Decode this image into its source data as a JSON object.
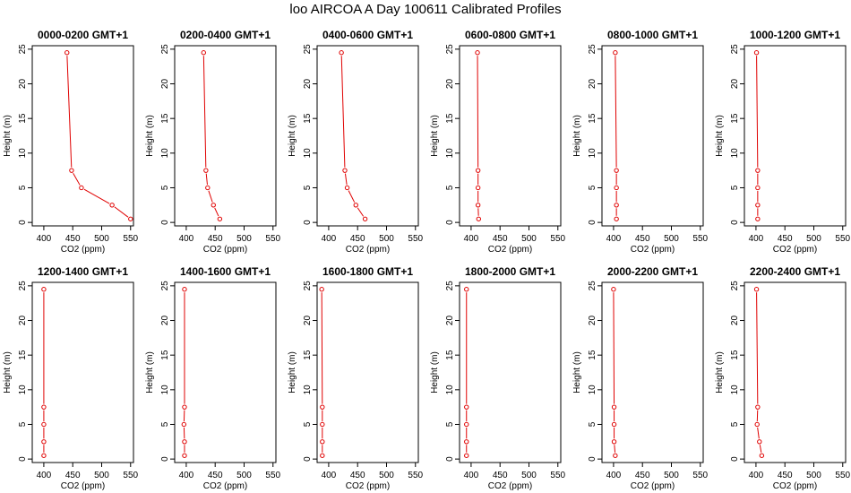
{
  "figure": {
    "title": "loo AIRCOA A  Day 100611  Calibrated Profiles"
  },
  "colors": {
    "line": "#e00000",
    "axis": "#000000"
  },
  "chart_data": [
    {
      "type": "line",
      "title": "0000-0200 GMT+1",
      "xlabel": "CO2 (ppm)",
      "ylabel": "Height (m)",
      "xlim": [
        380,
        555
      ],
      "ylim": [
        -0.5,
        25.5
      ],
      "xticks": [
        400,
        450,
        500,
        550
      ],
      "yticks": [
        0,
        5,
        10,
        15,
        20,
        25
      ],
      "grid": false,
      "series": [
        {
          "x": [
            550,
            518,
            465,
            448,
            440
          ],
          "y": [
            0.5,
            2.5,
            5,
            7.5,
            24.5
          ]
        }
      ]
    },
    {
      "type": "line",
      "title": "0200-0400 GMT+1",
      "xlabel": "CO2 (ppm)",
      "ylabel": "Height (m)",
      "xlim": [
        380,
        555
      ],
      "ylim": [
        -0.5,
        25.5
      ],
      "xticks": [
        400,
        450,
        500,
        550
      ],
      "yticks": [
        0,
        5,
        10,
        15,
        20,
        25
      ],
      "grid": false,
      "series": [
        {
          "x": [
            458,
            447,
            437,
            434,
            430
          ],
          "y": [
            0.5,
            2.5,
            5,
            7.5,
            24.5
          ]
        }
      ]
    },
    {
      "type": "line",
      "title": "0400-0600 GMT+1",
      "xlabel": "CO2 (ppm)",
      "ylabel": "Height (m)",
      "xlim": [
        380,
        555
      ],
      "ylim": [
        -0.5,
        25.5
      ],
      "xticks": [
        400,
        450,
        500,
        550
      ],
      "yticks": [
        0,
        5,
        10,
        15,
        20,
        25
      ],
      "grid": false,
      "series": [
        {
          "x": [
            463,
            447,
            432,
            428,
            422
          ],
          "y": [
            0.5,
            2.5,
            5,
            7.5,
            24.5
          ]
        }
      ]
    },
    {
      "type": "line",
      "title": "0600-0800 GMT+1",
      "xlabel": "CO2 (ppm)",
      "ylabel": "Height (m)",
      "xlim": [
        380,
        555
      ],
      "ylim": [
        -0.5,
        25.5
      ],
      "xticks": [
        400,
        450,
        500,
        550
      ],
      "yticks": [
        0,
        5,
        10,
        15,
        20,
        25
      ],
      "grid": false,
      "series": [
        {
          "x": [
            413,
            412,
            412,
            412,
            411
          ],
          "y": [
            0.5,
            2.5,
            5,
            7.5,
            24.5
          ]
        }
      ]
    },
    {
      "type": "line",
      "title": "0800-1000 GMT+1",
      "xlabel": "CO2 (ppm)",
      "ylabel": "Height (m)",
      "xlim": [
        380,
        555
      ],
      "ylim": [
        -0.5,
        25.5
      ],
      "xticks": [
        400,
        450,
        500,
        550
      ],
      "yticks": [
        0,
        5,
        10,
        15,
        20,
        25
      ],
      "grid": false,
      "series": [
        {
          "x": [
            405,
            405,
            405,
            405,
            403
          ],
          "y": [
            0.5,
            2.5,
            5,
            7.5,
            24.5
          ]
        }
      ]
    },
    {
      "type": "line",
      "title": "1000-1200 GMT+1",
      "xlabel": "CO2 (ppm)",
      "ylabel": "Height (m)",
      "xlim": [
        380,
        555
      ],
      "ylim": [
        -0.5,
        25.5
      ],
      "xticks": [
        400,
        450,
        500,
        550
      ],
      "yticks": [
        0,
        5,
        10,
        15,
        20,
        25
      ],
      "grid": false,
      "series": [
        {
          "x": [
            403,
            403,
            403,
            403,
            401
          ],
          "y": [
            0.5,
            2.5,
            5,
            7.5,
            24.5
          ]
        }
      ]
    },
    {
      "type": "line",
      "title": "1200-1400 GMT+1",
      "xlabel": "CO2 (ppm)",
      "ylabel": "Height (m)",
      "xlim": [
        380,
        555
      ],
      "ylim": [
        -0.5,
        25.5
      ],
      "xticks": [
        400,
        450,
        500,
        550
      ],
      "yticks": [
        0,
        5,
        10,
        15,
        20,
        25
      ],
      "grid": false,
      "series": [
        {
          "x": [
            400,
            400,
            400,
            400,
            400
          ],
          "y": [
            0.5,
            2.5,
            5,
            7.5,
            24.5
          ]
        }
      ]
    },
    {
      "type": "line",
      "title": "1400-1600 GMT+1",
      "xlabel": "CO2 (ppm)",
      "ylabel": "Height (m)",
      "xlim": [
        380,
        555
      ],
      "ylim": [
        -0.5,
        25.5
      ],
      "xticks": [
        400,
        450,
        500,
        550
      ],
      "yticks": [
        0,
        5,
        10,
        15,
        20,
        25
      ],
      "grid": false,
      "series": [
        {
          "x": [
            397,
            397,
            396,
            397,
            397
          ],
          "y": [
            0.5,
            2.5,
            5,
            7.5,
            24.5
          ]
        }
      ]
    },
    {
      "type": "line",
      "title": "1600-1800 GMT+1",
      "xlabel": "CO2 (ppm)",
      "ylabel": "Height (m)",
      "xlim": [
        380,
        555
      ],
      "ylim": [
        -0.5,
        25.5
      ],
      "xticks": [
        400,
        450,
        500,
        550
      ],
      "yticks": [
        0,
        5,
        10,
        15,
        20,
        25
      ],
      "grid": false,
      "series": [
        {
          "x": [
            389,
            389,
            389,
            389,
            388
          ],
          "y": [
            0.5,
            2.5,
            5,
            7.5,
            24.5
          ]
        }
      ]
    },
    {
      "type": "line",
      "title": "1800-2000 GMT+1",
      "xlabel": "CO2 (ppm)",
      "ylabel": "Height (m)",
      "xlim": [
        380,
        555
      ],
      "ylim": [
        -0.5,
        25.5
      ],
      "xticks": [
        400,
        450,
        500,
        550
      ],
      "yticks": [
        0,
        5,
        10,
        15,
        20,
        25
      ],
      "grid": false,
      "series": [
        {
          "x": [
            392,
            392,
            392,
            392,
            392
          ],
          "y": [
            0.5,
            2.5,
            5,
            7.5,
            24.5
          ]
        }
      ]
    },
    {
      "type": "line",
      "title": "2000-2200 GMT+1",
      "xlabel": "CO2 (ppm)",
      "ylabel": "Height (m)",
      "xlim": [
        380,
        555
      ],
      "ylim": [
        -0.5,
        25.5
      ],
      "xticks": [
        400,
        450,
        500,
        550
      ],
      "yticks": [
        0,
        5,
        10,
        15,
        20,
        25
      ],
      "grid": false,
      "series": [
        {
          "x": [
            403,
            401,
            401,
            401,
            400
          ],
          "y": [
            0.5,
            2.5,
            5,
            7.5,
            24.5
          ]
        }
      ]
    },
    {
      "type": "line",
      "title": "2200-2400 GMT+1",
      "xlabel": "CO2 (ppm)",
      "ylabel": "Height (m)",
      "xlim": [
        380,
        555
      ],
      "ylim": [
        -0.5,
        25.5
      ],
      "xticks": [
        400,
        450,
        500,
        550
      ],
      "yticks": [
        0,
        5,
        10,
        15,
        20,
        25
      ],
      "grid": false,
      "series": [
        {
          "x": [
            410,
            406,
            402,
            403,
            401
          ],
          "y": [
            0.5,
            2.5,
            5,
            7.5,
            24.5
          ]
        }
      ]
    }
  ]
}
